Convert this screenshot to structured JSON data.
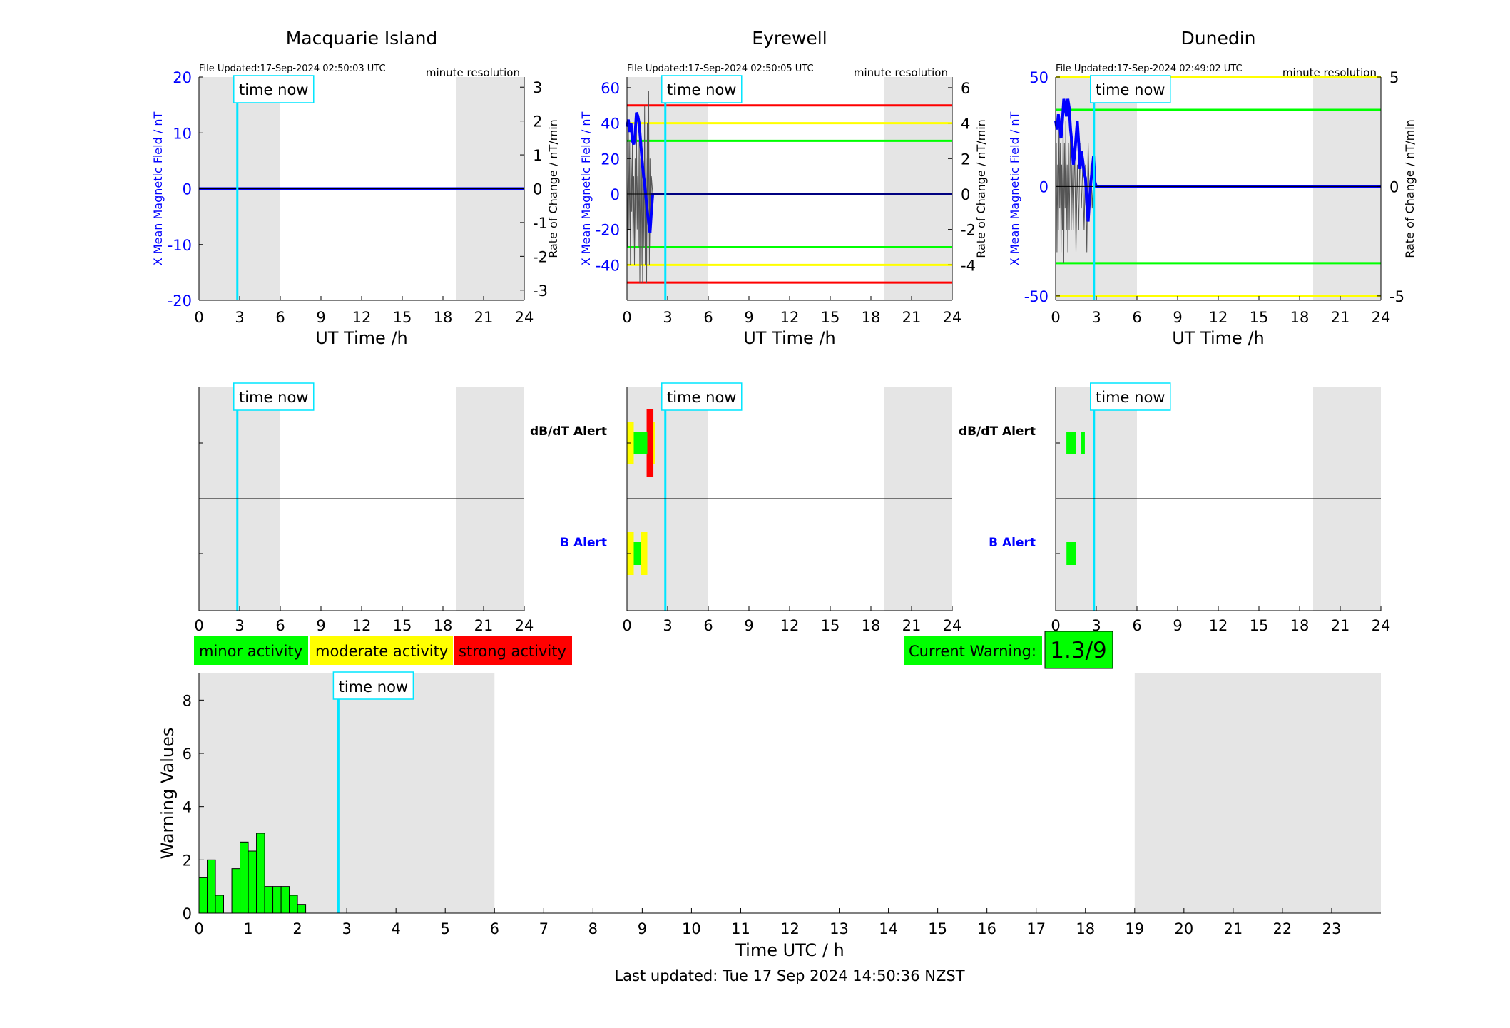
{
  "colors": {
    "night_shade": "#e5e5e5",
    "now_line": "#00e5ff",
    "magnetic_line": "#0000ff",
    "rate_trace": "#555555",
    "minor": "#00ff00",
    "moderate": "#ffff00",
    "strong": "#ff0000",
    "left_axis": "#0000ff",
    "text": "#000000"
  },
  "stations": [
    {
      "title": "Macquarie Island",
      "file_updated": "File Updated:17-Sep-2024 02:50:03 UTC",
      "resolution": "minute resolution",
      "time_now_label": "time now",
      "left_axis_label": "X Mean Magnetic Field / nT",
      "right_axis_label": "Rate of Change / nT/min",
      "x_axis_label": "UT Time /h",
      "alert_dbdt_label": "",
      "alert_b_label": "",
      "ylim_left": [
        -20,
        20
      ],
      "ylim_right": [
        -3.3,
        3.3
      ],
      "yticks_left": [
        -20,
        -10,
        0,
        10,
        20
      ],
      "yticks_right": [
        -3,
        -2,
        -1,
        0,
        1,
        2,
        3
      ],
      "xticks": [
        0,
        3,
        6,
        9,
        12,
        15,
        18,
        21,
        24
      ],
      "threshold_lines": [],
      "field_series": [
        [
          0,
          0
        ],
        [
          24,
          0
        ]
      ],
      "rate_series": [],
      "alert_dbdt": [],
      "alert_b": []
    },
    {
      "title": "Eyrewell",
      "file_updated": "File Updated:17-Sep-2024 02:50:05 UTC",
      "resolution": "minute resolution",
      "time_now_label": "time now",
      "left_axis_label": "X Mean Magnetic Field / nT",
      "right_axis_label": "Rate of Change / nT/min",
      "x_axis_label": "UT Time /h",
      "alert_dbdt_label": "dB/dT Alert",
      "alert_b_label": "B Alert",
      "ylim_left": [
        -60,
        66
      ],
      "ylim_right": [
        -6,
        6.6
      ],
      "yticks_left": [
        -40,
        -20,
        0,
        20,
        40,
        60
      ],
      "yticks_right": [
        -4,
        -2,
        0,
        2,
        4,
        6
      ],
      "xticks": [
        0,
        3,
        6,
        9,
        12,
        15,
        18,
        21,
        24
      ],
      "threshold_lines": [
        {
          "value": 50,
          "color": "#ff0000"
        },
        {
          "value": 40,
          "color": "#ffff00"
        },
        {
          "value": 30,
          "color": "#00ff00"
        },
        {
          "value": -30,
          "color": "#00ff00"
        },
        {
          "value": -40,
          "color": "#ffff00"
        },
        {
          "value": -50,
          "color": "#ff0000"
        }
      ],
      "field_series": [
        [
          0,
          38
        ],
        [
          0.1,
          42
        ],
        [
          0.2,
          35
        ],
        [
          0.3,
          40
        ],
        [
          0.4,
          30
        ],
        [
          0.5,
          28
        ],
        [
          0.6,
          34
        ],
        [
          0.7,
          46
        ],
        [
          0.8,
          44
        ],
        [
          0.9,
          40
        ],
        [
          1.0,
          30
        ],
        [
          1.1,
          20
        ],
        [
          1.2,
          12
        ],
        [
          1.3,
          6
        ],
        [
          1.4,
          -2
        ],
        [
          1.5,
          -10
        ],
        [
          1.6,
          -16
        ],
        [
          1.7,
          -22
        ],
        [
          1.8,
          -10
        ],
        [
          1.9,
          0
        ],
        [
          2.0,
          0
        ],
        [
          3.0,
          0
        ],
        [
          24,
          0
        ]
      ],
      "rate_series": [
        [
          0,
          1
        ],
        [
          0.05,
          -3
        ],
        [
          0.1,
          4
        ],
        [
          0.15,
          -2
        ],
        [
          0.2,
          3
        ],
        [
          0.25,
          -4
        ],
        [
          0.3,
          2
        ],
        [
          0.35,
          -1
        ],
        [
          0.4,
          3
        ],
        [
          0.45,
          -3
        ],
        [
          0.5,
          1
        ],
        [
          0.55,
          -4
        ],
        [
          0.6,
          2
        ],
        [
          0.65,
          -3
        ],
        [
          0.7,
          4
        ],
        [
          0.75,
          -2
        ],
        [
          0.8,
          1
        ],
        [
          0.85,
          -3
        ],
        [
          0.9,
          3
        ],
        [
          0.95,
          -5
        ],
        [
          1.0,
          2
        ],
        [
          1.05,
          -4
        ],
        [
          1.1,
          3
        ],
        [
          1.15,
          -5
        ],
        [
          1.2,
          1
        ],
        [
          1.25,
          -3
        ],
        [
          1.3,
          5
        ],
        [
          1.35,
          -4
        ],
        [
          1.4,
          2
        ],
        [
          1.45,
          -5
        ],
        [
          1.5,
          4
        ],
        [
          1.55,
          -3
        ],
        [
          1.6,
          5.8
        ],
        [
          1.65,
          -4
        ],
        [
          1.7,
          2
        ],
        [
          1.75,
          -3
        ],
        [
          1.8,
          1
        ],
        [
          1.9,
          0
        ],
        [
          2.0,
          0
        ]
      ],
      "alert_dbdt": [
        {
          "t0": 0.0,
          "t1": 0.5,
          "level": "moderate"
        },
        {
          "t0": 0.5,
          "t1": 1.5,
          "level": "minor"
        },
        {
          "t0": 1.5,
          "t1": 2.1,
          "level": "moderate"
        },
        {
          "t0": 1.45,
          "t1": 1.95,
          "level": "strong"
        }
      ],
      "alert_b": [
        {
          "t0": 0.0,
          "t1": 0.5,
          "level": "moderate"
        },
        {
          "t0": 0.5,
          "t1": 1.0,
          "level": "minor"
        },
        {
          "t0": 1.0,
          "t1": 1.5,
          "level": "moderate"
        }
      ]
    },
    {
      "title": "Dunedin",
      "file_updated": "File Updated:17-Sep-2024 02:49:02 UTC",
      "resolution": "minute resolution",
      "time_now_label": "time now",
      "left_axis_label": "X Mean Magnetic Field / nT",
      "right_axis_label": "Rate of Change / nT/min",
      "x_axis_label": "UT Time /h",
      "alert_dbdt_label": "dB/dT Alert",
      "alert_b_label": "B Alert",
      "ylim_left": [
        -52,
        50
      ],
      "ylim_right": [
        -5.2,
        5
      ],
      "yticks_left": [
        -50,
        0,
        50
      ],
      "yticks_right": [
        -5,
        0,
        5
      ],
      "xticks": [
        0,
        3,
        6,
        9,
        12,
        15,
        18,
        21,
        24
      ],
      "threshold_lines": [
        {
          "value": 50,
          "color": "#ffff00"
        },
        {
          "value": 35,
          "color": "#00ff00"
        },
        {
          "value": -35,
          "color": "#00ff00"
        },
        {
          "value": -50,
          "color": "#ffff00"
        }
      ],
      "field_series": [
        [
          0,
          30
        ],
        [
          0.1,
          26
        ],
        [
          0.2,
          33
        ],
        [
          0.3,
          28
        ],
        [
          0.4,
          22
        ],
        [
          0.5,
          30
        ],
        [
          0.6,
          40
        ],
        [
          0.7,
          36
        ],
        [
          0.8,
          32
        ],
        [
          0.9,
          40
        ],
        [
          1.0,
          36
        ],
        [
          1.1,
          26
        ],
        [
          1.2,
          20
        ],
        [
          1.3,
          10
        ],
        [
          1.4,
          14
        ],
        [
          1.5,
          22
        ],
        [
          1.6,
          30
        ],
        [
          1.7,
          20
        ],
        [
          1.8,
          8
        ],
        [
          1.9,
          16
        ],
        [
          2.0,
          12
        ],
        [
          2.1,
          6
        ],
        [
          2.2,
          4
        ],
        [
          2.3,
          -8
        ],
        [
          2.4,
          -16
        ],
        [
          2.5,
          -6
        ],
        [
          2.6,
          2
        ],
        [
          2.7,
          8
        ],
        [
          2.8,
          14
        ],
        [
          2.9,
          2
        ],
        [
          3.0,
          0
        ],
        [
          24,
          0
        ]
      ],
      "rate_series": [
        [
          0,
          0
        ],
        [
          0.05,
          2
        ],
        [
          0.1,
          -3
        ],
        [
          0.15,
          1
        ],
        [
          0.2,
          -2
        ],
        [
          0.25,
          3
        ],
        [
          0.3,
          -1
        ],
        [
          0.35,
          2
        ],
        [
          0.4,
          -3
        ],
        [
          0.45,
          1
        ],
        [
          0.5,
          -2
        ],
        [
          0.55,
          3
        ],
        [
          0.6,
          -3.5
        ],
        [
          0.65,
          2
        ],
        [
          0.7,
          -1
        ],
        [
          0.75,
          3
        ],
        [
          0.8,
          -2
        ],
        [
          0.85,
          1
        ],
        [
          0.9,
          -3
        ],
        [
          0.95,
          2
        ],
        [
          1.0,
          -2
        ],
        [
          1.1,
          3.2
        ],
        [
          1.15,
          -2
        ],
        [
          1.2,
          1
        ],
        [
          1.3,
          -2
        ],
        [
          1.4,
          2
        ],
        [
          1.5,
          -3
        ],
        [
          1.6,
          1
        ],
        [
          1.7,
          -2
        ],
        [
          1.8,
          2
        ],
        [
          1.9,
          -1
        ],
        [
          2.0,
          1
        ],
        [
          2.1,
          -2
        ],
        [
          2.2,
          1
        ],
        [
          2.3,
          -3
        ],
        [
          2.4,
          2
        ],
        [
          2.5,
          -1
        ],
        [
          2.6,
          1
        ],
        [
          2.7,
          -1
        ],
        [
          2.8,
          0.5
        ],
        [
          2.9,
          0
        ],
        [
          3.0,
          0
        ]
      ],
      "alert_dbdt": [
        {
          "t0": 0.8,
          "t1": 1.5,
          "level": "minor"
        },
        {
          "t0": 1.85,
          "t1": 2.15,
          "level": "minor"
        }
      ],
      "alert_b": [
        {
          "t0": 0.8,
          "t1": 1.5,
          "level": "minor"
        }
      ]
    }
  ],
  "legend": {
    "minor": "minor activity",
    "moderate": "moderate activity",
    "strong": "strong activity"
  },
  "current_warning": {
    "label": "Current Warning:",
    "value": "1.3/9"
  },
  "chart_data": {
    "type": "bar",
    "title": "",
    "xlabel": "Time UTC / h",
    "ylabel": "Warning Values",
    "xlim": [
      0,
      24
    ],
    "ylim": [
      0,
      9
    ],
    "yticks": [
      0,
      2,
      4,
      6,
      8
    ],
    "xticks": [
      0,
      1,
      2,
      3,
      4,
      5,
      6,
      7,
      8,
      9,
      10,
      11,
      12,
      13,
      14,
      15,
      16,
      17,
      18,
      19,
      20,
      21,
      22,
      23
    ],
    "time_now_label": "time now",
    "time_now_h": 2.83,
    "night_shade": [
      [
        0,
        6
      ],
      [
        19,
        24
      ]
    ],
    "bar_width_h": 0.1667,
    "bars": [
      {
        "t": 0.0,
        "value": 1.33
      },
      {
        "t": 0.167,
        "value": 2.0
      },
      {
        "t": 0.333,
        "value": 0.67
      },
      {
        "t": 0.667,
        "value": 1.67
      },
      {
        "t": 0.833,
        "value": 2.67
      },
      {
        "t": 1.0,
        "value": 2.33
      },
      {
        "t": 1.167,
        "value": 3.0
      },
      {
        "t": 1.333,
        "value": 1.0
      },
      {
        "t": 1.5,
        "value": 1.0
      },
      {
        "t": 1.667,
        "value": 1.0
      },
      {
        "t": 1.833,
        "value": 0.67
      },
      {
        "t": 2.0,
        "value": 0.33
      }
    ]
  },
  "time_now_h": 2.83,
  "night_shade_h": [
    [
      0,
      6
    ],
    [
      19,
      24
    ]
  ],
  "footer": "Last updated: Tue 17 Sep 2024 14:50:36 NZST"
}
